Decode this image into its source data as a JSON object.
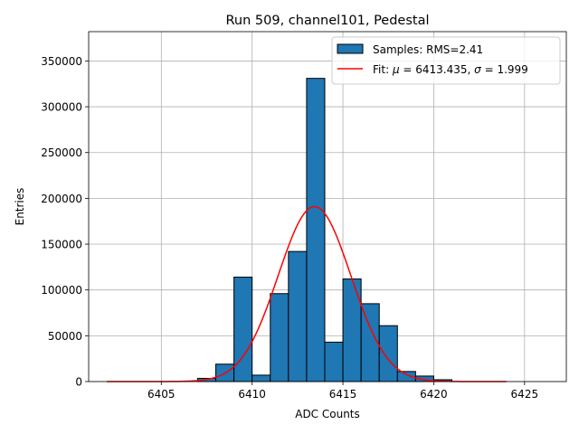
{
  "chart_data": {
    "type": "bar",
    "title": "Run 509, channel101, Pedestal",
    "xlabel": "ADC Counts",
    "ylabel": "Entries",
    "xlim": [
      6401,
      6427.3
    ],
    "ylim": [
      0,
      382000
    ],
    "xticks": [
      6405,
      6410,
      6415,
      6420,
      6425
    ],
    "yticks": [
      0,
      50000,
      100000,
      150000,
      200000,
      250000,
      300000,
      350000
    ],
    "grid": true,
    "bin_width": 1,
    "histogram": {
      "name": "Samples: RMS=2.41",
      "color": "#1f77b4",
      "bin_edges": [
        6407,
        6408,
        6409,
        6410,
        6411,
        6412,
        6413,
        6414,
        6415,
        6416,
        6417,
        6418,
        6419,
        6420,
        6421
      ],
      "counts": [
        3500,
        19000,
        114000,
        7000,
        96000,
        142000,
        331000,
        43000,
        112000,
        85000,
        61000,
        11000,
        6000,
        2000
      ]
    },
    "fit": {
      "name_prefix": "Fit: ",
      "mu_symbol": "μ",
      "mu_value": " = 6413.435, ",
      "sigma_symbol": "σ",
      "sigma_value": " = 1.999",
      "mu": 6413.435,
      "sigma": 1.999,
      "amplitude": 191000,
      "x_range": [
        6402,
        6424
      ],
      "color": "#ff0000"
    },
    "legend_position": "upper right"
  }
}
